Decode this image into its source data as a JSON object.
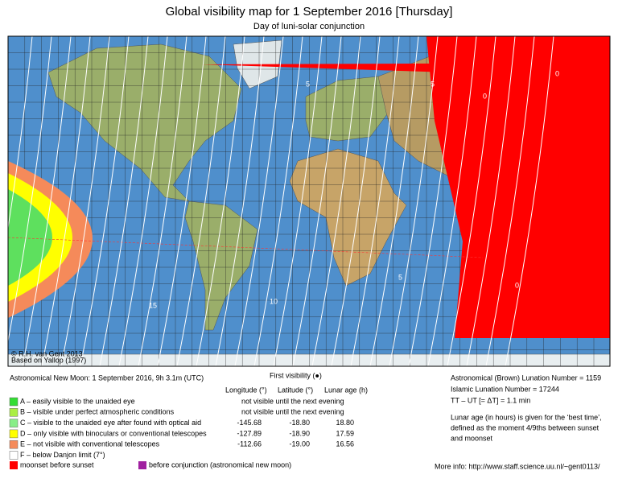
{
  "header": {
    "title": "Global visibility map for 1 September 2016 [Thursday]",
    "subtitle": "Day of luni-solar conjunction"
  },
  "map": {
    "credits": [
      "© R.H. van Gent 2013",
      "Based on Yallop (1997)"
    ],
    "contour_labels": [
      "15",
      "10",
      "5",
      "0",
      "5",
      "0",
      "5",
      "0"
    ]
  },
  "new_moon": "Astronomical New Moon: 1 September 2016, 9h 3.1m (UTC)",
  "first_visibility": "First visibility (●)",
  "table": {
    "columns": [
      "Longitude (°)",
      "Latitude (°)",
      "Lunar age (h)"
    ],
    "rows": [
      {
        "key": "A – easily visible to the unaided eye",
        "note": "not visible until the next evening"
      },
      {
        "key": "B – visible under perfect atmospheric conditions",
        "note": "not visible until the next evening"
      },
      {
        "key": "C – visible to the unaided eye after found with optical aid",
        "values": [
          "-145.68",
          "-18.80",
          "18.80"
        ]
      },
      {
        "key": "D – only visible with binoculars or conventional telescopes",
        "values": [
          "-127.89",
          "-18.90",
          "17.59"
        ]
      },
      {
        "key": "E – not visible with conventional telescopes",
        "values": [
          "-112.66",
          "-19.00",
          "16.56"
        ]
      },
      {
        "key": "F – below Danjon limit (7°)"
      }
    ]
  },
  "extra_legend": [
    "moonset before sunset",
    "before conjunction (astronomical new moon)"
  ],
  "info": [
    "Astronomical (Brown) Lunation Number = 1159",
    "Islamic Lunation Number = 17244",
    "TT – UT [= ΔT] = 1.1 min",
    "Lunar age (in hours) is given for the ‘best time’,",
    "defined as the moment 4/9ths between sunset",
    "and moonset"
  ],
  "more_info": "More info: http://www.staff.science.uu.nl/~gent0113/"
}
